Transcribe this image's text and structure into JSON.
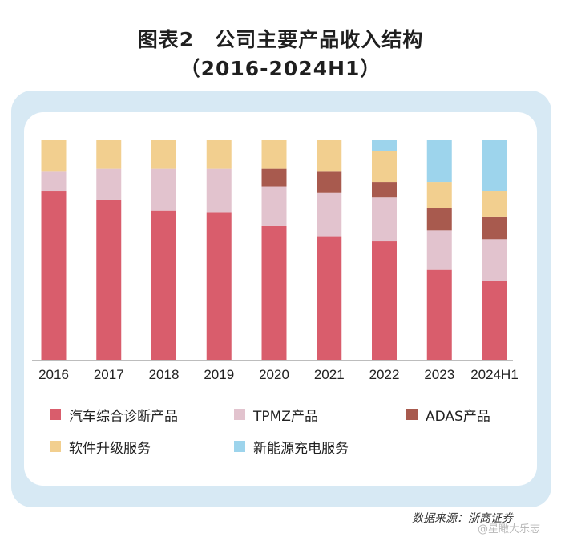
{
  "title_line1": "图表2　公司主要产品收入结构",
  "title_line2": "（2016-2024H1）",
  "source": "数据来源：浙商证券",
  "watermark": "@星瞰大乐志",
  "chart_data": {
    "type": "bar",
    "stacked": true,
    "normalized": true,
    "categories": [
      "2016",
      "2017",
      "2018",
      "2019",
      "2020",
      "2021",
      "2022",
      "2023",
      "2024H1"
    ],
    "series": [
      {
        "name": "汽车综合诊断产品",
        "color": "#d95d6c",
        "values": [
          0.77,
          0.73,
          0.68,
          0.67,
          0.61,
          0.56,
          0.54,
          0.41,
          0.36
        ]
      },
      {
        "name": "TPMZ产品",
        "color": "#e2c3ce",
        "values": [
          0.09,
          0.14,
          0.19,
          0.2,
          0.18,
          0.2,
          0.2,
          0.18,
          0.19
        ]
      },
      {
        "name": "ADAS产品",
        "color": "#a85a4e",
        "values": [
          0.0,
          0.0,
          0.0,
          0.0,
          0.08,
          0.1,
          0.07,
          0.1,
          0.1
        ]
      },
      {
        "name": "软件升级服务",
        "color": "#f2cf8f",
        "values": [
          0.14,
          0.13,
          0.13,
          0.13,
          0.13,
          0.14,
          0.14,
          0.12,
          0.12
        ]
      },
      {
        "name": "新能源充电服务",
        "color": "#9dd4ec",
        "values": [
          0.0,
          0.0,
          0.0,
          0.0,
          0.0,
          0.0,
          0.05,
          0.19,
          0.23
        ]
      }
    ],
    "ylim": [
      0,
      1
    ],
    "grid": false,
    "legend_position": "bottom"
  }
}
